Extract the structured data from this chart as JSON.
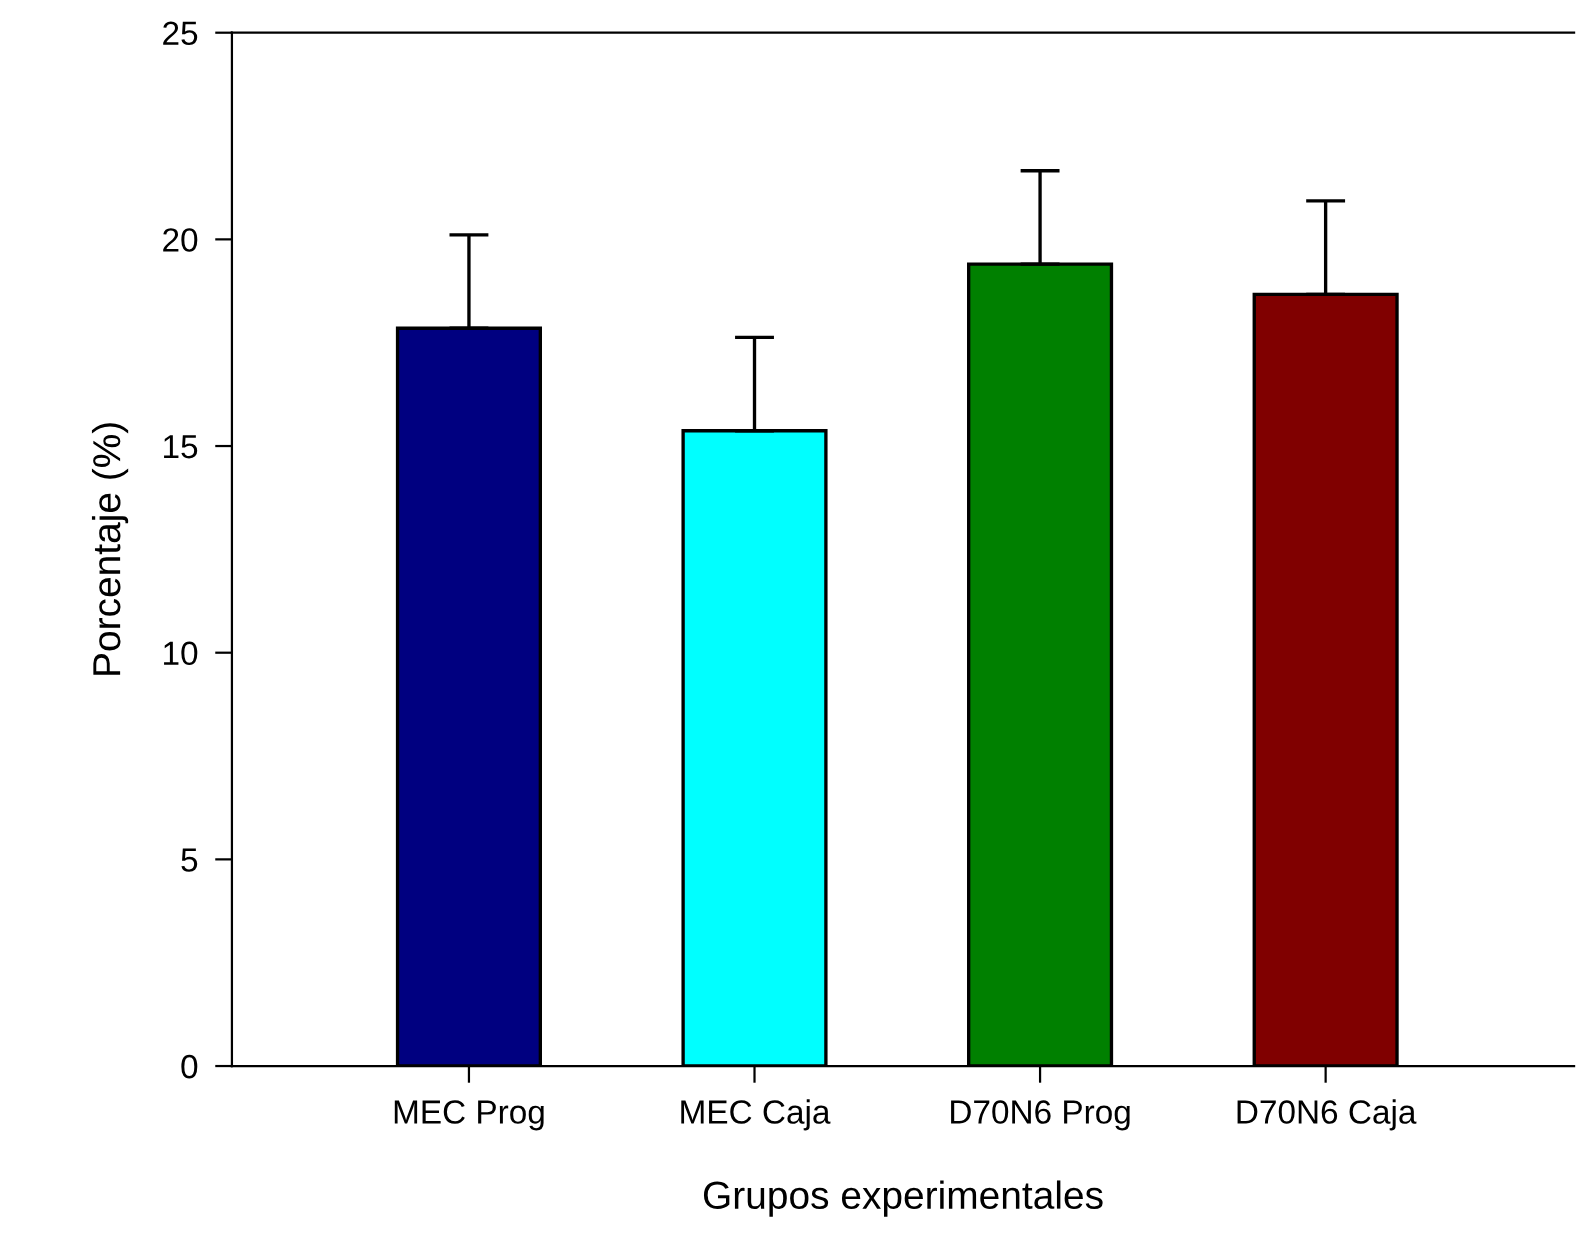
{
  "chart_data": {
    "type": "bar",
    "xlabel": "Grupos experimentales",
    "ylabel": "Porcentaje (%)",
    "categories": [
      "MEC Prog",
      "MEC Caja",
      "D70N6 Prog",
      "D70N6 Caja"
    ],
    "values": [
      17.85,
      15.37,
      19.4,
      18.67
    ],
    "colors": [
      "#000080",
      "#00ffff",
      "#008000",
      "#800000"
    ],
    "errors": [
      [
        17.85,
        20.11
      ],
      [
        15.37,
        17.63
      ],
      [
        19.4,
        21.66
      ],
      [
        18.67,
        20.93
      ]
    ],
    "ylim": [
      0,
      25
    ],
    "yticks": [
      0,
      5,
      10,
      15,
      20,
      25
    ],
    "grid": false,
    "legend": false
  }
}
